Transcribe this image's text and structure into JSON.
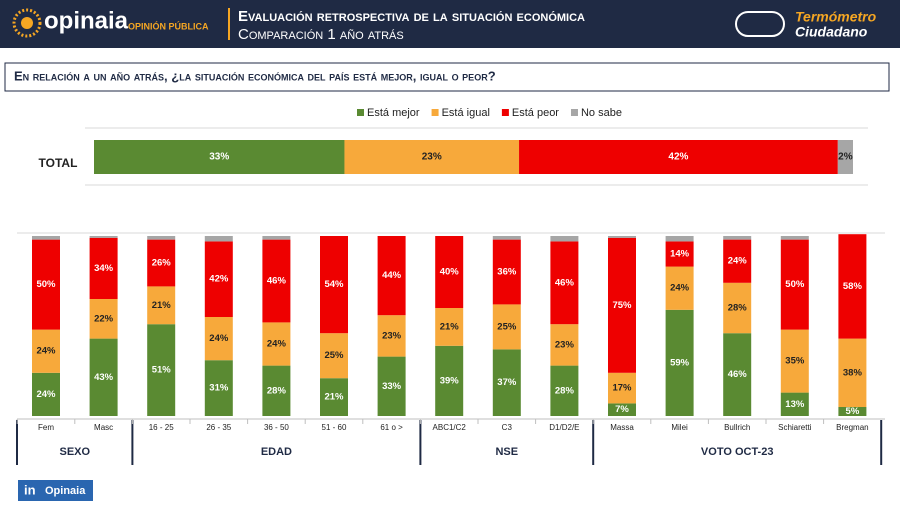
{
  "header": {
    "brand": "opinaia",
    "brand_sub": "OPINIÓN PÚBLICA",
    "title": "Evaluación retrospectiva de la situación económica",
    "subtitle": "Comparación 1 año atrás",
    "badge_line1": "Termómetro",
    "badge_line2": "Ciudadano"
  },
  "question": "En relación a un año atrás, ¿la situación económica del país está mejor, igual o peor?",
  "linkedin": {
    "icon": "in",
    "label": "Opinaia"
  },
  "chart_data": [
    {
      "type": "stacked-hbar",
      "categories": [
        "TOTAL"
      ],
      "xlim": [
        0,
        100
      ],
      "legend": "top",
      "series": [
        {
          "name": "Está mejor",
          "color": "#5a8a32",
          "values": [
            33
          ],
          "value_labels": [
            "33%"
          ]
        },
        {
          "name": "Está igual",
          "color": "#f7a93b",
          "values": [
            23
          ],
          "value_labels": [
            "23%"
          ]
        },
        {
          "name": "Está peor",
          "color": "#ee0000",
          "values": [
            42
          ],
          "value_labels": [
            "42%"
          ]
        },
        {
          "name": "No sabe",
          "color": "#a6a6a6",
          "values": [
            2
          ],
          "value_labels": [
            "2%"
          ]
        }
      ]
    },
    {
      "type": "stacked-column",
      "ylim": [
        0,
        100
      ],
      "groups": [
        {
          "label": "SEXO",
          "categories": [
            "Fem",
            "Masc"
          ]
        },
        {
          "label": "EDAD",
          "categories": [
            "16 - 25",
            "26 - 35",
            "36 - 50",
            "51 - 60",
            "61 o >"
          ]
        },
        {
          "label": "NSE",
          "categories": [
            "ABC1/C2",
            "C3",
            "D1/D2/E"
          ]
        },
        {
          "label": "VOTO OCT-23",
          "categories": [
            "Massa",
            "Milei",
            "Bullrich",
            "Schiaretti",
            "Bregman"
          ]
        }
      ],
      "series": [
        {
          "color": "#5a8a32",
          "values": [
            24,
            43,
            51,
            31,
            28,
            21,
            33,
            39,
            37,
            28,
            7,
            59,
            46,
            13,
            5
          ],
          "value_labels": [
            "24%",
            "43%",
            "51%",
            "31%",
            "28%",
            "21%",
            "33%",
            "39%",
            "37%",
            "28%",
            "7%",
            "59%",
            "46%",
            "13%",
            "5%"
          ]
        },
        {
          "color": "#f7a93b",
          "values": [
            24,
            22,
            21,
            24,
            24,
            25,
            23,
            21,
            25,
            23,
            17,
            24,
            28,
            35,
            38
          ],
          "value_labels": [
            "24%",
            "22%",
            "21%",
            "24%",
            "24%",
            "25%",
            "23%",
            "21%",
            "25%",
            "23%",
            "17%",
            "24%",
            "28%",
            "35%",
            "38%"
          ]
        },
        {
          "color": "#ee0000",
          "values": [
            50,
            34,
            26,
            42,
            46,
            54,
            44,
            40,
            36,
            46,
            75,
            14,
            24,
            50,
            58
          ],
          "value_labels": [
            "50%",
            "34%",
            "26%",
            "42%",
            "46%",
            "54%",
            "44%",
            "40%",
            "36%",
            "46%",
            "75%",
            "14%",
            "24%",
            "50%",
            "58%"
          ]
        },
        {
          "color": "#a6a6a6",
          "values": [
            2,
            1,
            2,
            3,
            2,
            0,
            0,
            0,
            2,
            3,
            1,
            3,
            2,
            2,
            0
          ],
          "value_labels": [
            null,
            null,
            null,
            null,
            null,
            null,
            null,
            null,
            null,
            null,
            null,
            null,
            null,
            null,
            null
          ]
        }
      ]
    }
  ]
}
